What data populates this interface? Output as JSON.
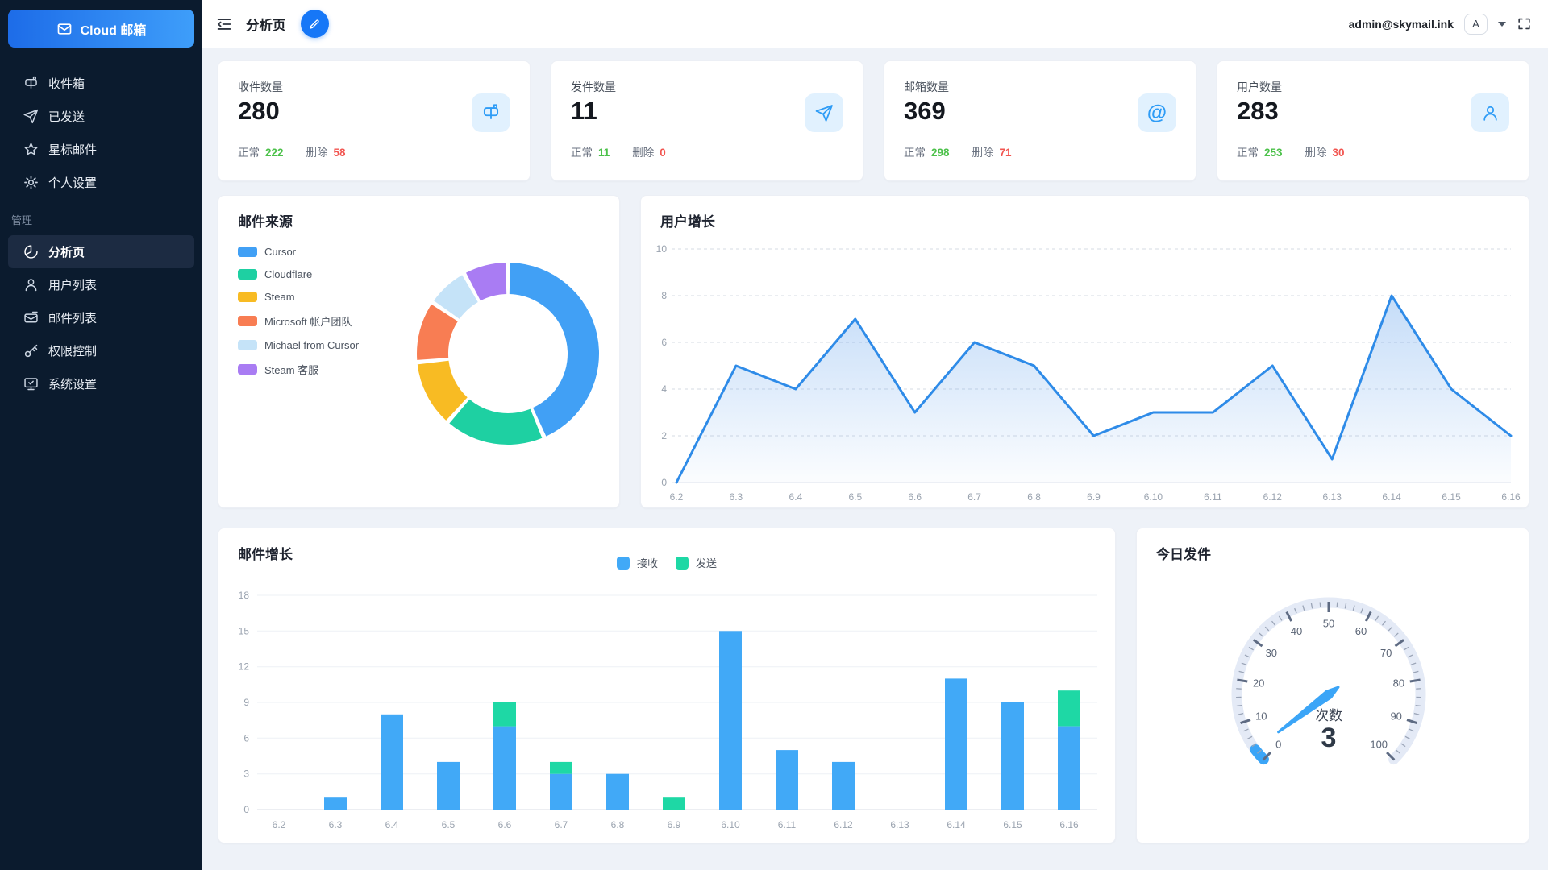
{
  "app": {
    "logo_text": "Cloud 邮箱"
  },
  "topbar": {
    "title": "分析页",
    "user_email": "admin@skymail.ink",
    "avatar_letter": "A"
  },
  "sidebar": {
    "main_items": [
      {
        "label": "收件箱",
        "icon": "mailbox-icon"
      },
      {
        "label": "已发送",
        "icon": "send-icon"
      },
      {
        "label": "星标邮件",
        "icon": "star-icon"
      },
      {
        "label": "个人设置",
        "icon": "gear-icon"
      }
    ],
    "section_label": "管理",
    "admin_items": [
      {
        "label": "分析页",
        "icon": "pie-chart-icon",
        "active": true
      },
      {
        "label": "用户列表",
        "icon": "user-icon",
        "active": false
      },
      {
        "label": "邮件列表",
        "icon": "mail-list-icon",
        "active": false
      },
      {
        "label": "权限控制",
        "icon": "key-icon",
        "active": false
      },
      {
        "label": "系统设置",
        "icon": "monitor-check-icon",
        "active": false
      }
    ]
  },
  "colors": {
    "primary": "#1677F7",
    "green": "#4CC14A",
    "red": "#F25550",
    "sidebar_bg": "#0B1B2E"
  },
  "stats": [
    {
      "label": "收件数量",
      "value": "280",
      "normal_label": "正常",
      "normal_value": "222",
      "deleted_label": "删除",
      "deleted_value": "58",
      "icon": "mailbox-icon"
    },
    {
      "label": "发件数量",
      "value": "11",
      "normal_label": "正常",
      "normal_value": "11",
      "deleted_label": "删除",
      "deleted_value": "0",
      "icon": "send-icon"
    },
    {
      "label": "邮箱数量",
      "value": "369",
      "normal_label": "正常",
      "normal_value": "298",
      "deleted_label": "删除",
      "deleted_value": "71",
      "icon": "at-icon",
      "icon_glyph": "@"
    },
    {
      "label": "用户数量",
      "value": "283",
      "normal_label": "正常",
      "normal_value": "253",
      "deleted_label": "删除",
      "deleted_value": "30",
      "icon": "user-icon"
    }
  ],
  "chart_data": [
    {
      "type": "pie",
      "title": "邮件来源",
      "donut": true,
      "legend_position": "left",
      "series": [
        {
          "name": "Cursor",
          "value": 43.5,
          "color": "#41A0F5"
        },
        {
          "name": "Cloudflare",
          "value": 18,
          "color": "#1ED0A2"
        },
        {
          "name": "Steam",
          "value": 12,
          "color": "#F8BB23"
        },
        {
          "name": "Microsoft 帐户团队",
          "value": 11,
          "color": "#F87D53"
        },
        {
          "name": "Michael from Cursor",
          "value": 7.5,
          "color": "#C5E3F8"
        },
        {
          "name": "Steam 客服",
          "value": 8,
          "color": "#A97CF3"
        }
      ]
    },
    {
      "type": "area",
      "title": "用户增长",
      "categories": [
        "6.2",
        "6.3",
        "6.4",
        "6.5",
        "6.6",
        "6.7",
        "6.8",
        "6.9",
        "6.10",
        "6.11",
        "6.12",
        "6.13",
        "6.14",
        "6.15",
        "6.16"
      ],
      "values": [
        0,
        5,
        4,
        7,
        3,
        6,
        5,
        2,
        3,
        3,
        5,
        1,
        8,
        4,
        2
      ],
      "ylim": [
        0,
        10
      ],
      "yticks": [
        0,
        2,
        4,
        6,
        8,
        10
      ],
      "line_color": "#2E8BE8",
      "fill_from": "rgba(62,140,232,0.30)",
      "fill_to": "rgba(62,140,232,0.02)",
      "grid": "dashed"
    },
    {
      "type": "bar",
      "title": "邮件增长",
      "stacked": true,
      "legend_position": "top",
      "categories": [
        "6.2",
        "6.3",
        "6.4",
        "6.5",
        "6.6",
        "6.7",
        "6.8",
        "6.9",
        "6.10",
        "6.11",
        "6.12",
        "6.13",
        "6.14",
        "6.15",
        "6.16"
      ],
      "series": [
        {
          "name": "接收",
          "color": "#41A9F7",
          "values": [
            0,
            1,
            8,
            4,
            7,
            3,
            3,
            0,
            15,
            5,
            4,
            0,
            11,
            9,
            7
          ]
        },
        {
          "name": "发送",
          "color": "#1ED8A5",
          "values": [
            0,
            0,
            0,
            0,
            2,
            1,
            0,
            1,
            0,
            0,
            0,
            0,
            0,
            0,
            3
          ]
        }
      ],
      "ylim": [
        0,
        18
      ],
      "yticks": [
        0,
        3,
        6,
        9,
        12,
        15,
        18
      ]
    },
    {
      "type": "gauge",
      "title": "今日发件",
      "min": 0,
      "max": 100,
      "value": 3,
      "major_interval": 10,
      "minor_interval": 2,
      "unit_label": "次数",
      "track_color": "#E4EAF6",
      "progress_color": "#3BA5F7",
      "needle_color": "#3BA5F7"
    }
  ]
}
